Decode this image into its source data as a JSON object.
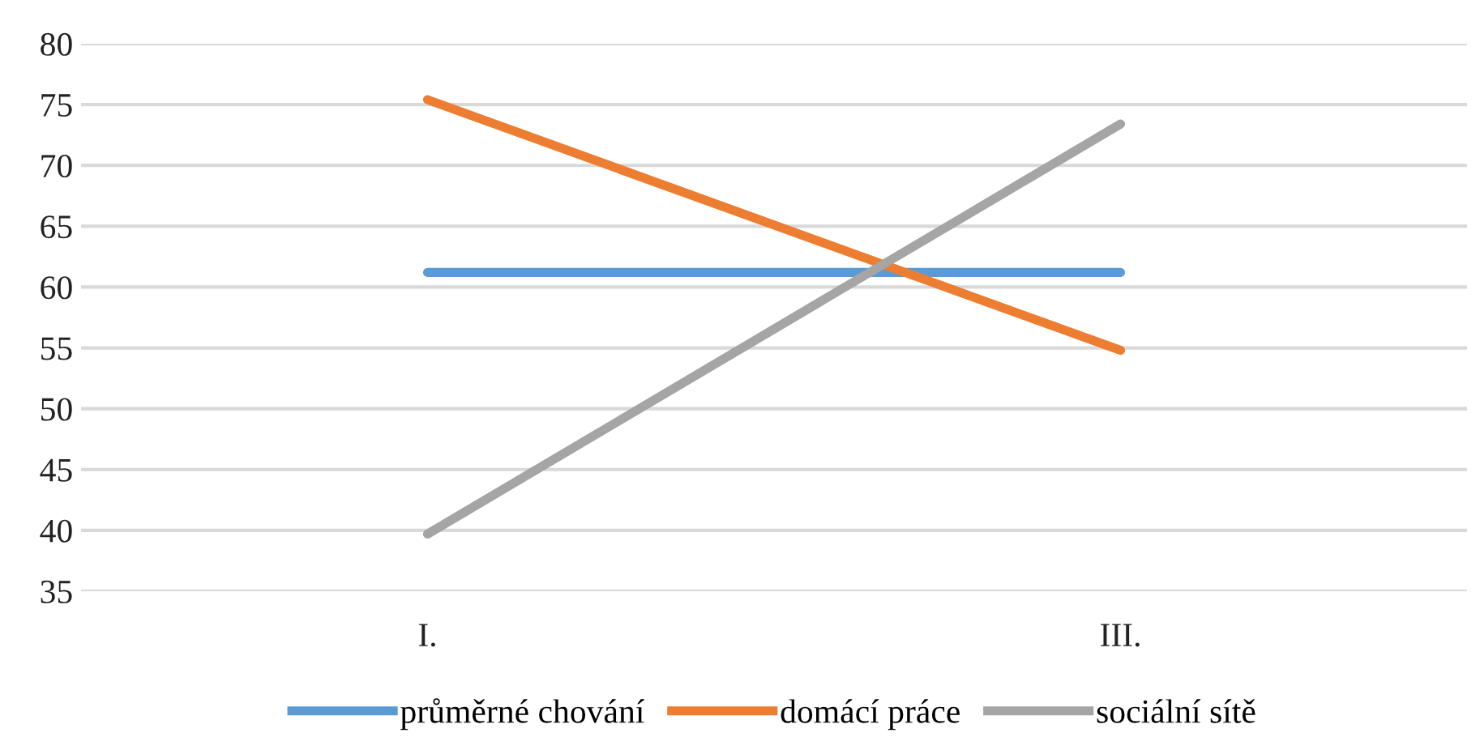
{
  "chart_data": {
    "type": "line",
    "categories": [
      "I.",
      "III."
    ],
    "series": [
      {
        "name": "průměrné chování",
        "color": "#5b9bd5",
        "values": [
          61.2,
          61.2
        ]
      },
      {
        "name": "domácí práce",
        "color": "#ed7d31",
        "values": [
          75.4,
          54.8
        ]
      },
      {
        "name": "sociální sítě",
        "color": "#a5a5a5",
        "values": [
          39.7,
          73.4
        ]
      }
    ],
    "ylim": [
      35,
      80
    ],
    "yticks": [
      35,
      40,
      45,
      50,
      55,
      60,
      65,
      70,
      75,
      80
    ],
    "grid": "y",
    "legend": "bottom",
    "marker": "none",
    "line_style": "solid"
  }
}
